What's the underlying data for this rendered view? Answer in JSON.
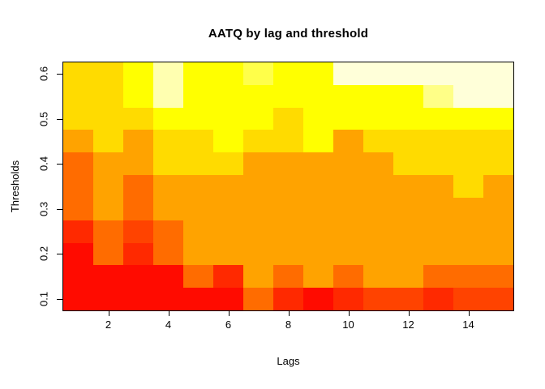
{
  "title": "AATQ by lag and threshold",
  "chart_data": {
    "type": "heatmap",
    "title": "AATQ by lag and threshold",
    "xlabel": "Lags",
    "ylabel": "Thresholds",
    "xlim": [
      0.5,
      15.5
    ],
    "ylim": [
      0.075,
      0.625
    ],
    "x_tick_values": [
      2,
      4,
      6,
      8,
      10,
      12,
      14
    ],
    "x_ticks": [
      "2",
      "4",
      "6",
      "8",
      "10",
      "12",
      "14"
    ],
    "y_tick_values": [
      0.1,
      0.2,
      0.3,
      0.4,
      0.5,
      0.6
    ],
    "y_ticks": [
      "0.1",
      "0.2",
      "0.3",
      "0.4",
      "0.5",
      "0.6"
    ],
    "lags": [
      1,
      2,
      3,
      4,
      5,
      6,
      7,
      8,
      9,
      10,
      11,
      12,
      13,
      14,
      15
    ],
    "thresholds_top_to_bottom": [
      0.6,
      0.55,
      0.5,
      0.45,
      0.4,
      0.35,
      0.3,
      0.25,
      0.2,
      0.15,
      0.1
    ],
    "legend": "off",
    "grid": "off",
    "palette": {
      "red": "#FF0B00",
      "red2": "#FF2900",
      "red3": "#FF4300",
      "dkor": "#FF6C00",
      "orange": "#FFA300",
      "gold": "#FFDB00",
      "yellow": "#FFFF00",
      "lty1": "#FFFF4A",
      "lty2": "#FFFF87",
      "pale": "#FFFFB0",
      "cream": "#FFFFD9"
    },
    "cells": [
      [
        "gold",
        "gold",
        "yellow",
        "pale",
        "yellow",
        "yellow",
        "lty1",
        "yellow",
        "yellow",
        "cream",
        "cream",
        "cream",
        "cream",
        "cream",
        "cream"
      ],
      [
        "gold",
        "gold",
        "yellow",
        "pale",
        "yellow",
        "yellow",
        "yellow",
        "yellow",
        "yellow",
        "yellow",
        "yellow",
        "yellow",
        "lty2",
        "cream",
        "cream"
      ],
      [
        "gold",
        "gold",
        "gold",
        "yellow",
        "yellow",
        "yellow",
        "yellow",
        "gold",
        "yellow",
        "yellow",
        "yellow",
        "yellow",
        "yellow",
        "yellow",
        "yellow"
      ],
      [
        "orange",
        "gold",
        "orange",
        "gold",
        "gold",
        "yellow",
        "gold",
        "gold",
        "yellow",
        "orange",
        "gold",
        "gold",
        "gold",
        "gold",
        "gold"
      ],
      [
        "dkor",
        "orange",
        "orange",
        "gold",
        "gold",
        "gold",
        "orange",
        "orange",
        "orange",
        "orange",
        "orange",
        "gold",
        "gold",
        "gold",
        "gold"
      ],
      [
        "dkor",
        "orange",
        "dkor",
        "orange",
        "orange",
        "orange",
        "orange",
        "orange",
        "orange",
        "orange",
        "orange",
        "orange",
        "orange",
        "gold",
        "orange"
      ],
      [
        "dkor",
        "orange",
        "dkor",
        "orange",
        "orange",
        "orange",
        "orange",
        "orange",
        "orange",
        "orange",
        "orange",
        "orange",
        "orange",
        "orange",
        "orange"
      ],
      [
        "red2",
        "dkor",
        "red3",
        "dkor",
        "orange",
        "orange",
        "orange",
        "orange",
        "orange",
        "orange",
        "orange",
        "orange",
        "orange",
        "orange",
        "orange"
      ],
      [
        "red",
        "dkor",
        "red2",
        "dkor",
        "orange",
        "orange",
        "orange",
        "orange",
        "orange",
        "orange",
        "orange",
        "orange",
        "orange",
        "orange",
        "orange"
      ],
      [
        "red",
        "red",
        "red",
        "red",
        "dkor",
        "red2",
        "orange",
        "dkor",
        "orange",
        "dkor",
        "orange",
        "orange",
        "dkor",
        "dkor",
        "dkor"
      ],
      [
        "red",
        "red",
        "red",
        "red",
        "red",
        "red",
        "dkor",
        "red2",
        "red",
        "red2",
        "red3",
        "red3",
        "red2",
        "red3",
        "red3"
      ]
    ]
  }
}
